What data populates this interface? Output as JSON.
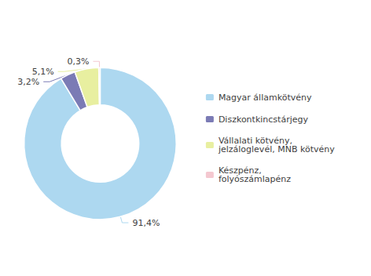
{
  "chart_data": {
    "type": "pie",
    "categories": [
      "Magyar államkötvény",
      "Diszkontkincstárjegy",
      "Vállalati kötvény, jelzáloglevél, MNB kötvény",
      "Készpénz, folyószámlapénz"
    ],
    "values": [
      91.4,
      3.2,
      5.1,
      0.3
    ],
    "value_labels": [
      "91,4%",
      "3,2%",
      "5,1%",
      "0,3%"
    ],
    "colors": [
      "#ADD8F0",
      "#7B7BB5",
      "#E8EFA0",
      "#F4C8D0"
    ],
    "data_labels": true,
    "legend": "right"
  }
}
